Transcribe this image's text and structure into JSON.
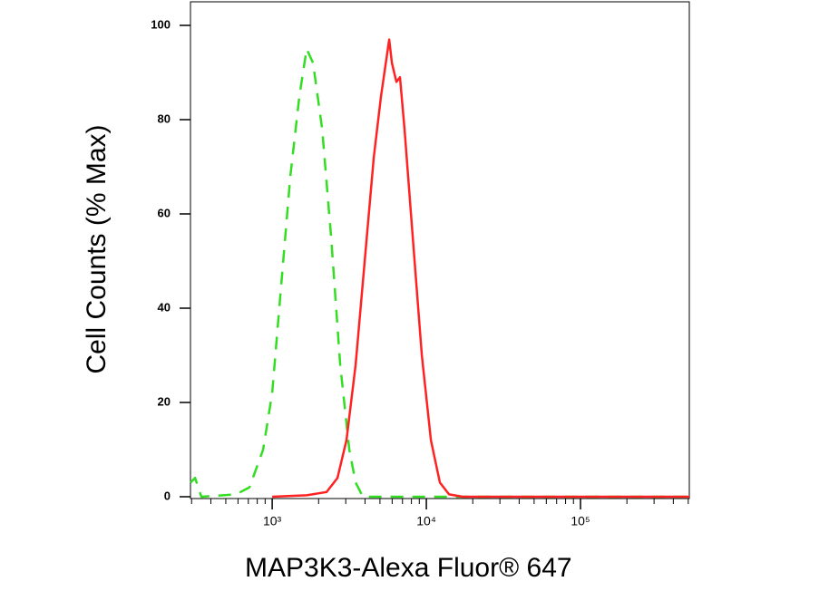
{
  "chart_data": {
    "type": "line",
    "x_label": "MAP3K3-Alexa Fluor® 647",
    "y_label": "Cell Counts (% Max)",
    "x_log": true,
    "xlim": [
      295,
      508000
    ],
    "ylim": [
      0,
      105
    ],
    "xticks": [
      {
        "value": 1000,
        "label": "10³"
      },
      {
        "value": 10000,
        "label": "10⁴"
      },
      {
        "value": 100000,
        "label": "10⁵"
      }
    ],
    "xticks_minor": [
      300,
      400,
      500,
      600,
      700,
      800,
      900,
      2000,
      3000,
      4000,
      5000,
      6000,
      7000,
      8000,
      9000,
      20000,
      30000,
      40000,
      50000,
      60000,
      70000,
      80000,
      90000,
      200000,
      300000,
      400000,
      500000
    ],
    "yticks": [
      0,
      20,
      40,
      60,
      80,
      100
    ],
    "series": [
      {
        "color": "#33dd22",
        "dash": true,
        "x": [
          295,
          316,
          347,
          582,
          713,
          873,
          1000,
          1145,
          1311,
          1501,
          1673,
          1843,
          2109,
          2411,
          2762,
          3162,
          3475,
          3873,
          5823,
          11450,
          508000
        ],
        "values": [
          3,
          4,
          0,
          0.5,
          2,
          10,
          22,
          45,
          68,
          85,
          95,
          92,
          78,
          55,
          28,
          10,
          3,
          0,
          0,
          0,
          0
        ]
      },
      {
        "color": "#ff2222",
        "dash": false,
        "x": [
          1000,
          1673,
          2254,
          2652,
          3033,
          3475,
          3981,
          4562,
          5082,
          5510,
          5741,
          5975,
          6394,
          6745,
          7221,
          8166,
          9351,
          10700,
          12250,
          14030,
          17190,
          508000
        ],
        "values": [
          0,
          0.3,
          1,
          4,
          12,
          28,
          50,
          72,
          85,
          93,
          97,
          92,
          88,
          89,
          78,
          55,
          30,
          12,
          3,
          0.5,
          0,
          0
        ]
      }
    ]
  }
}
